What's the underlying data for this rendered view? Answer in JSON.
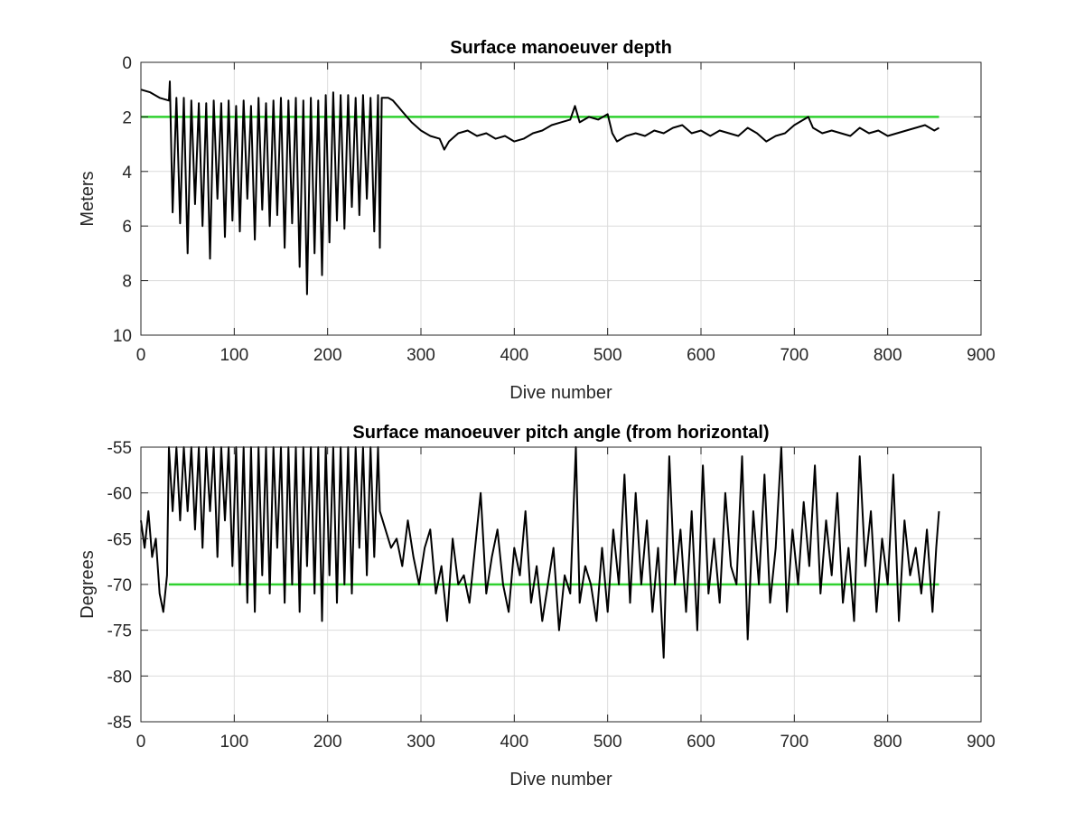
{
  "chart_data": [
    {
      "type": "line",
      "title": "Surface manoeuver depth",
      "xlabel": "Dive number",
      "ylabel": "Meters",
      "xlim": [
        0,
        900
      ],
      "ylim": [
        0,
        10
      ],
      "y_reversed": true,
      "xticks": [
        0,
        100,
        200,
        300,
        400,
        500,
        600,
        700,
        800,
        900
      ],
      "yticks": [
        0,
        2,
        4,
        6,
        8,
        10
      ],
      "grid": true,
      "reference_line": {
        "y": 2,
        "x_range": [
          0,
          855
        ],
        "color": "#2fd12f"
      },
      "series": [
        {
          "color": "#000000",
          "x": [
            0,
            10,
            20,
            30,
            31,
            34,
            38,
            42,
            46,
            50,
            54,
            58,
            62,
            66,
            70,
            74,
            78,
            82,
            86,
            90,
            94,
            98,
            102,
            106,
            110,
            114,
            118,
            122,
            126,
            130,
            134,
            138,
            142,
            146,
            150,
            154,
            158,
            162,
            166,
            170,
            174,
            178,
            182,
            186,
            190,
            194,
            198,
            202,
            206,
            210,
            214,
            218,
            222,
            226,
            230,
            234,
            238,
            242,
            246,
            250,
            254,
            256,
            258,
            265,
            270,
            275,
            280,
            290,
            300,
            310,
            320,
            325,
            330,
            340,
            350,
            360,
            370,
            380,
            390,
            400,
            410,
            420,
            430,
            440,
            450,
            460,
            465,
            470,
            480,
            490,
            500,
            505,
            510,
            520,
            530,
            540,
            550,
            560,
            570,
            580,
            590,
            600,
            610,
            620,
            630,
            640,
            650,
            660,
            670,
            680,
            690,
            700,
            710,
            715,
            720,
            730,
            740,
            750,
            760,
            770,
            780,
            790,
            800,
            810,
            820,
            830,
            840,
            850,
            855
          ],
          "y": [
            1.0,
            1.1,
            1.3,
            1.4,
            0.7,
            5.5,
            1.3,
            5.9,
            1.3,
            7.0,
            1.4,
            5.2,
            1.5,
            6.0,
            1.5,
            7.2,
            1.4,
            5.0,
            1.5,
            6.4,
            1.4,
            5.8,
            1.6,
            6.2,
            1.4,
            5.0,
            1.6,
            6.5,
            1.3,
            5.4,
            1.5,
            6.0,
            1.4,
            5.6,
            1.3,
            6.8,
            1.4,
            5.9,
            1.3,
            7.5,
            1.4,
            8.5,
            1.3,
            7.0,
            1.4,
            7.8,
            1.2,
            6.6,
            1.1,
            5.8,
            1.2,
            6.1,
            1.2,
            5.3,
            1.3,
            5.6,
            1.2,
            5.0,
            1.3,
            6.2,
            1.2,
            6.8,
            1.3,
            1.3,
            1.4,
            1.6,
            1.8,
            2.2,
            2.5,
            2.7,
            2.8,
            3.2,
            2.9,
            2.6,
            2.5,
            2.7,
            2.6,
            2.8,
            2.7,
            2.9,
            2.8,
            2.6,
            2.5,
            2.3,
            2.2,
            2.1,
            1.6,
            2.2,
            2.0,
            2.1,
            1.9,
            2.6,
            2.9,
            2.7,
            2.6,
            2.7,
            2.5,
            2.6,
            2.4,
            2.3,
            2.6,
            2.5,
            2.7,
            2.5,
            2.6,
            2.7,
            2.4,
            2.6,
            2.9,
            2.7,
            2.6,
            2.3,
            2.1,
            2.0,
            2.4,
            2.6,
            2.5,
            2.6,
            2.7,
            2.4,
            2.6,
            2.5,
            2.7,
            2.6,
            2.5,
            2.4,
            2.3,
            2.5,
            2.4
          ]
        }
      ]
    },
    {
      "type": "line",
      "title": "Surface manoeuver pitch angle (from horizontal)",
      "xlabel": "Dive number",
      "ylabel": "Degrees",
      "xlim": [
        0,
        900
      ],
      "ylim": [
        -85,
        -55
      ],
      "xticks": [
        0,
        100,
        200,
        300,
        400,
        500,
        600,
        700,
        800,
        900
      ],
      "yticks": [
        -55,
        -60,
        -65,
        -70,
        -75,
        -80,
        -85
      ],
      "grid": true,
      "reference_line": {
        "y": -70,
        "x_range": [
          30,
          855
        ],
        "color": "#2fd12f"
      },
      "series": [
        {
          "color": "#000000",
          "x": [
            0,
            4,
            8,
            12,
            16,
            20,
            24,
            28,
            30,
            34,
            38,
            42,
            46,
            50,
            54,
            58,
            62,
            66,
            70,
            74,
            78,
            82,
            86,
            90,
            94,
            98,
            102,
            106,
            110,
            114,
            118,
            122,
            126,
            130,
            134,
            138,
            142,
            146,
            150,
            154,
            158,
            162,
            166,
            170,
            174,
            178,
            182,
            186,
            190,
            194,
            198,
            202,
            206,
            210,
            214,
            218,
            222,
            226,
            230,
            234,
            238,
            242,
            246,
            250,
            254,
            256,
            262,
            268,
            274,
            280,
            286,
            292,
            298,
            304,
            310,
            316,
            322,
            328,
            334,
            340,
            346,
            352,
            358,
            364,
            370,
            376,
            382,
            388,
            394,
            400,
            406,
            412,
            418,
            424,
            430,
            436,
            442,
            448,
            454,
            460,
            466,
            470,
            476,
            482,
            488,
            494,
            500,
            506,
            512,
            518,
            524,
            530,
            536,
            542,
            548,
            554,
            560,
            566,
            572,
            578,
            584,
            590,
            596,
            602,
            608,
            614,
            620,
            626,
            632,
            638,
            644,
            650,
            656,
            662,
            668,
            674,
            680,
            686,
            692,
            698,
            704,
            710,
            716,
            722,
            728,
            734,
            740,
            746,
            752,
            758,
            764,
            770,
            776,
            782,
            788,
            794,
            800,
            806,
            812,
            818,
            824,
            830,
            836,
            842,
            848,
            852,
            855
          ],
          "y": [
            -63,
            -66,
            -62,
            -67,
            -65,
            -71,
            -73,
            -69,
            -55,
            -62,
            -55,
            -63,
            -55,
            -62,
            -55,
            -64,
            -55,
            -66,
            -55,
            -62,
            -55,
            -67,
            -55,
            -63,
            -55,
            -68,
            -55,
            -70,
            -55,
            -72,
            -55,
            -73,
            -55,
            -69,
            -55,
            -71,
            -55,
            -66,
            -55,
            -72,
            -55,
            -70,
            -55,
            -73,
            -55,
            -68,
            -55,
            -71,
            -55,
            -74,
            -55,
            -69,
            -55,
            -72,
            -55,
            -70,
            -55,
            -71,
            -55,
            -66,
            -55,
            -69,
            -55,
            -67,
            -55,
            -62,
            -64,
            -66,
            -65,
            -68,
            -63,
            -67,
            -70,
            -66,
            -64,
            -71,
            -68,
            -74,
            -65,
            -70,
            -69,
            -72,
            -66,
            -60,
            -71,
            -67,
            -64,
            -70,
            -73,
            -66,
            -69,
            -62,
            -72,
            -68,
            -74,
            -70,
            -66,
            -75,
            -69,
            -71,
            -55,
            -72,
            -68,
            -70,
            -74,
            -66,
            -73,
            -64,
            -70,
            -58,
            -72,
            -60,
            -70,
            -63,
            -73,
            -66,
            -78,
            -56,
            -70,
            -64,
            -73,
            -62,
            -75,
            -57,
            -71,
            -65,
            -72,
            -60,
            -68,
            -70,
            -56,
            -76,
            -62,
            -70,
            -58,
            -72,
            -66,
            -55,
            -73,
            -64,
            -70,
            -61,
            -68,
            -57,
            -71,
            -63,
            -69,
            -60,
            -72,
            -66,
            -74,
            -56,
            -68,
            -62,
            -73,
            -65,
            -70,
            -58,
            -74,
            -63,
            -69,
            -66,
            -71,
            -64,
            -73,
            -66,
            -62
          ]
        }
      ]
    }
  ]
}
